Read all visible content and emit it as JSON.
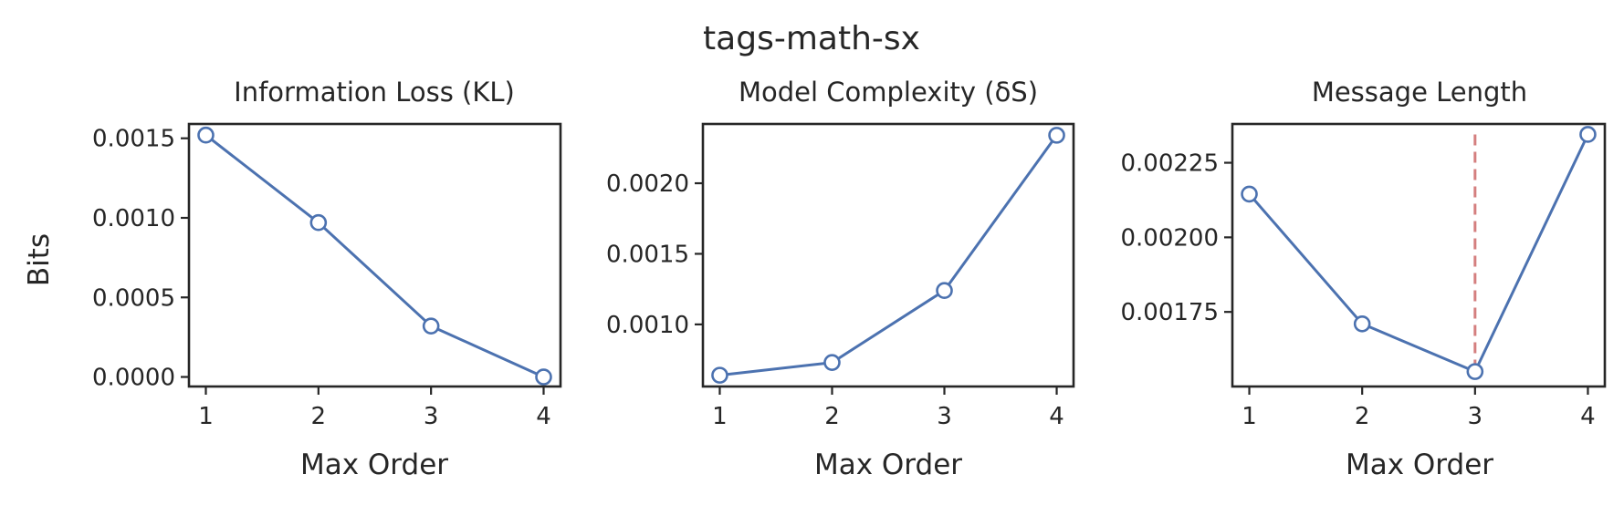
{
  "figure": {
    "title": "tags-math-sx"
  },
  "chart_data": [
    {
      "type": "line",
      "title": "Information Loss (KL)",
      "xlabel": "Max Order",
      "ylabel": "Bits",
      "x": [
        1,
        2,
        3,
        4
      ],
      "values": [
        0.00152,
        0.00097,
        0.00032,
        0.0
      ],
      "ylim": [
        -6e-05,
        0.00159
      ],
      "yticks": [
        0.0,
        0.0005,
        0.001,
        0.0015
      ],
      "ytick_labels": [
        "0.0000",
        "0.0005",
        "0.0010",
        "0.0015"
      ],
      "xticks": [
        1,
        2,
        3,
        4
      ],
      "xtick_labels": [
        "1",
        "2",
        "3",
        "4"
      ],
      "marker": "open-circle",
      "series_color": "#4c72b0",
      "grid": false
    },
    {
      "type": "line",
      "title": "Model Complexity (δS)",
      "xlabel": "Max Order",
      "ylabel": "",
      "x": [
        1,
        2,
        3,
        4
      ],
      "values": [
        0.00064,
        0.00073,
        0.00124,
        0.00234
      ],
      "ylim": [
        0.00056,
        0.00242
      ],
      "yticks": [
        0.001,
        0.0015,
        0.002
      ],
      "ytick_labels": [
        "0.0010",
        "0.0015",
        "0.0020"
      ],
      "xticks": [
        1,
        2,
        3,
        4
      ],
      "xtick_labels": [
        "1",
        "2",
        "3",
        "4"
      ],
      "marker": "open-circle",
      "series_color": "#4c72b0",
      "grid": false
    },
    {
      "type": "line",
      "title": "Message Length",
      "xlabel": "Max Order",
      "ylabel": "",
      "x": [
        1,
        2,
        3,
        4
      ],
      "values": [
        0.002145,
        0.00171,
        0.00155,
        0.002345
      ],
      "ylim": [
        0.0015,
        0.00238
      ],
      "yticks": [
        0.00175,
        0.002,
        0.00225
      ],
      "ytick_labels": [
        "0.00175",
        "0.00200",
        "0.00225"
      ],
      "xticks": [
        1,
        2,
        3,
        4
      ],
      "xtick_labels": [
        "1",
        "2",
        "3",
        "4"
      ],
      "marker": "open-circle",
      "series_color": "#4c72b0",
      "reference_line": {
        "x": 3,
        "orientation": "vertical",
        "style": "dashed",
        "color": "#d47f7f",
        "spans": "data-range"
      },
      "grid": false
    }
  ]
}
